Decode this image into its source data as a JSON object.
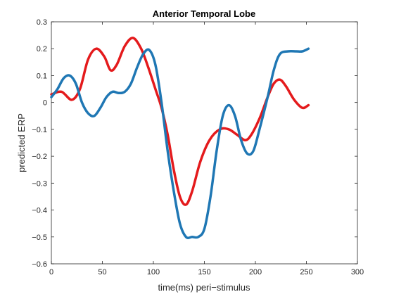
{
  "chart_data": {
    "type": "line",
    "title": "Anterior Temporal Lobe",
    "xlabel": "time(ms) peri−stimulus",
    "ylabel": "predicted ERP",
    "xlim": [
      0,
      300
    ],
    "ylim": [
      -0.6,
      0.3
    ],
    "xticks": [
      0,
      50,
      100,
      150,
      200,
      250,
      300
    ],
    "yticks": [
      -0.6,
      -0.5,
      -0.4,
      -0.3,
      -0.2,
      -0.1,
      0,
      0.1,
      0.2,
      0.3
    ],
    "xtick_labels": [
      "0",
      "50",
      "100",
      "150",
      "200",
      "250",
      "300"
    ],
    "ytick_labels": [
      "−0.6",
      "−0.5",
      "−0.4",
      "−0.3",
      "−0.2",
      "−0.1",
      "0",
      "0.1",
      "0.2",
      "0.3"
    ],
    "grid": false,
    "series": [
      {
        "color": "#e41a1c",
        "points": [
          [
            0,
            0.03
          ],
          [
            10,
            0.04
          ],
          [
            20,
            0.01
          ],
          [
            28,
            0.05
          ],
          [
            36,
            0.16
          ],
          [
            44,
            0.2
          ],
          [
            52,
            0.17
          ],
          [
            58,
            0.12
          ],
          [
            64,
            0.14
          ],
          [
            72,
            0.21
          ],
          [
            80,
            0.24
          ],
          [
            88,
            0.2
          ],
          [
            95,
            0.13
          ],
          [
            102,
            0.05
          ],
          [
            108,
            -0.02
          ],
          [
            114,
            -0.12
          ],
          [
            120,
            -0.25
          ],
          [
            126,
            -0.35
          ],
          [
            132,
            -0.38
          ],
          [
            138,
            -0.33
          ],
          [
            146,
            -0.22
          ],
          [
            155,
            -0.14
          ],
          [
            165,
            -0.1
          ],
          [
            174,
            -0.1
          ],
          [
            182,
            -0.12
          ],
          [
            190,
            -0.14
          ],
          [
            196,
            -0.12
          ],
          [
            204,
            -0.06
          ],
          [
            212,
            0.02
          ],
          [
            218,
            0.07
          ],
          [
            224,
            0.085
          ],
          [
            230,
            0.06
          ],
          [
            238,
            0.01
          ],
          [
            246,
            -0.02
          ],
          [
            252,
            -0.01
          ]
        ]
      },
      {
        "color": "#1f77b4",
        "points": [
          [
            0,
            0.02
          ],
          [
            6,
            0.05
          ],
          [
            12,
            0.09
          ],
          [
            18,
            0.1
          ],
          [
            24,
            0.07
          ],
          [
            30,
            0.0
          ],
          [
            36,
            -0.04
          ],
          [
            42,
            -0.05
          ],
          [
            48,
            -0.02
          ],
          [
            54,
            0.02
          ],
          [
            60,
            0.04
          ],
          [
            66,
            0.035
          ],
          [
            72,
            0.04
          ],
          [
            78,
            0.07
          ],
          [
            84,
            0.13
          ],
          [
            90,
            0.18
          ],
          [
            96,
            0.195
          ],
          [
            102,
            0.14
          ],
          [
            108,
            0.0
          ],
          [
            114,
            -0.18
          ],
          [
            120,
            -0.33
          ],
          [
            126,
            -0.45
          ],
          [
            132,
            -0.5
          ],
          [
            138,
            -0.5
          ],
          [
            144,
            -0.5
          ],
          [
            150,
            -0.47
          ],
          [
            156,
            -0.35
          ],
          [
            162,
            -0.18
          ],
          [
            168,
            -0.05
          ],
          [
            174,
            -0.01
          ],
          [
            180,
            -0.05
          ],
          [
            186,
            -0.14
          ],
          [
            192,
            -0.19
          ],
          [
            198,
            -0.18
          ],
          [
            204,
            -0.1
          ],
          [
            212,
            0.02
          ],
          [
            218,
            0.12
          ],
          [
            224,
            0.18
          ],
          [
            232,
            0.19
          ],
          [
            240,
            0.19
          ],
          [
            246,
            0.19
          ],
          [
            252,
            0.2
          ]
        ]
      }
    ]
  }
}
